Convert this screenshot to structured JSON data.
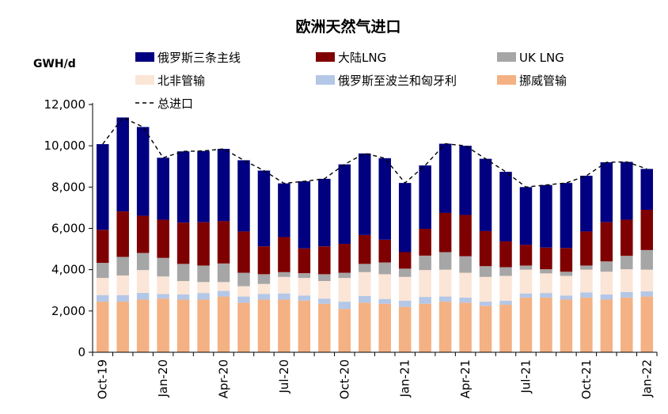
{
  "chart_data": {
    "type": "bar",
    "stacked": true,
    "title": "欧洲天然气进口",
    "ylabel": "GWH/d",
    "xlabel": "",
    "ylim": [
      0,
      12000
    ],
    "yticks": [
      0,
      2000,
      4000,
      6000,
      8000,
      10000,
      12000
    ],
    "ytick_labels": [
      "0",
      "2,000",
      "4,000",
      "6,000",
      "8,000",
      "10,000",
      "12,000"
    ],
    "grid": false,
    "legend_position": "top",
    "categories": [
      "Oct-19",
      "Nov-19",
      "Dec-19",
      "Jan-20",
      "Feb-20",
      "Mar-20",
      "Apr-20",
      "May-20",
      "Jun-20",
      "Jul-20",
      "Aug-20",
      "Sep-20",
      "Oct-20",
      "Nov-20",
      "Dec-20",
      "Jan-21",
      "Feb-21",
      "Mar-21",
      "Apr-21",
      "May-21",
      "Jun-21",
      "Jul-21",
      "Aug-21",
      "Sep-21",
      "Oct-21",
      "Nov-21",
      "Dec-21",
      "Jan-22"
    ],
    "xtick_labels": [
      "Oct-19",
      "",
      "",
      "Jan-20",
      "",
      "",
      "Apr-20",
      "",
      "",
      "Jul-20",
      "",
      "",
      "Oct-20",
      "",
      "",
      "Jan-21",
      "",
      "",
      "Apr-21",
      "",
      "",
      "Jul-21",
      "",
      "",
      "Oct-21",
      "",
      "",
      "Jan-22"
    ],
    "series": [
      {
        "name": "挪威管输",
        "color": "#F4B183",
        "values": [
          2450,
          2450,
          2550,
          2600,
          2550,
          2550,
          2700,
          2400,
          2550,
          2550,
          2500,
          2350,
          2100,
          2400,
          2350,
          2200,
          2350,
          2450,
          2400,
          2250,
          2300,
          2650,
          2650,
          2550,
          2650,
          2550,
          2650,
          2700
        ]
      },
      {
        "name": "俄罗斯至波兰和匈牙利",
        "color": "#B4C7E7",
        "values": [
          320,
          320,
          330,
          220,
          250,
          320,
          270,
          300,
          280,
          300,
          250,
          250,
          350,
          330,
          230,
          300,
          330,
          250,
          250,
          200,
          200,
          200,
          220,
          200,
          250,
          250,
          270,
          250
        ]
      },
      {
        "name": "北非管输",
        "color": "#FBE5D6",
        "values": [
          830,
          950,
          1100,
          850,
          650,
          530,
          430,
          500,
          480,
          800,
          850,
          850,
          1150,
          1150,
          1200,
          1150,
          1300,
          1300,
          1200,
          1200,
          1200,
          1150,
          950,
          950,
          1100,
          1100,
          1100,
          1050
        ]
      },
      {
        "name": "UK LNG",
        "color": "#A6A6A6",
        "values": [
          730,
          900,
          830,
          900,
          830,
          800,
          900,
          650,
          470,
          230,
          230,
          330,
          250,
          400,
          570,
          400,
          700,
          850,
          800,
          520,
          420,
          200,
          200,
          200,
          200,
          500,
          650,
          950
        ]
      },
      {
        "name": "大陆LNG",
        "color": "#7F0000",
        "values": [
          1600,
          2200,
          1800,
          1850,
          2000,
          2100,
          2050,
          2000,
          1350,
          1700,
          1200,
          1350,
          1400,
          1400,
          1100,
          800,
          1300,
          1900,
          2000,
          1700,
          1250,
          1000,
          1050,
          1150,
          1650,
          1900,
          1750,
          1950
        ]
      },
      {
        "name": "俄罗斯三条主线",
        "color": "#000080",
        "values": [
          4150,
          4550,
          4300,
          3000,
          3450,
          3450,
          3500,
          3450,
          3670,
          2600,
          3250,
          3270,
          3850,
          3950,
          3950,
          3350,
          3070,
          3350,
          3350,
          3500,
          3370,
          2800,
          3030,
          3150,
          2700,
          2900,
          2800,
          1980
        ]
      }
    ],
    "total_line": {
      "name": "总进口",
      "color": "#000000",
      "style": "dashed",
      "values": [
        10080,
        11370,
        10910,
        9420,
        9730,
        9750,
        9850,
        9300,
        8800,
        8180,
        8280,
        8400,
        9100,
        9630,
        9400,
        8200,
        9050,
        10100,
        10000,
        9370,
        8740,
        8000,
        8100,
        8200,
        8550,
        9200,
        9220,
        8880
      ]
    },
    "legend": [
      {
        "label": "俄罗斯三条主线",
        "color": "#000080",
        "kind": "box"
      },
      {
        "label": "大陆LNG",
        "color": "#7F0000",
        "kind": "box"
      },
      {
        "label": "UK LNG",
        "color": "#A6A6A6",
        "kind": "box"
      },
      {
        "label": "北非管输",
        "color": "#FBE5D6",
        "kind": "box"
      },
      {
        "label": "俄罗斯至波兰和匈牙利",
        "color": "#B4C7E7",
        "kind": "box"
      },
      {
        "label": "挪威管输",
        "color": "#F4B183",
        "kind": "box"
      },
      {
        "label": "总进口",
        "color": "#000000",
        "kind": "dashed-line"
      }
    ]
  }
}
